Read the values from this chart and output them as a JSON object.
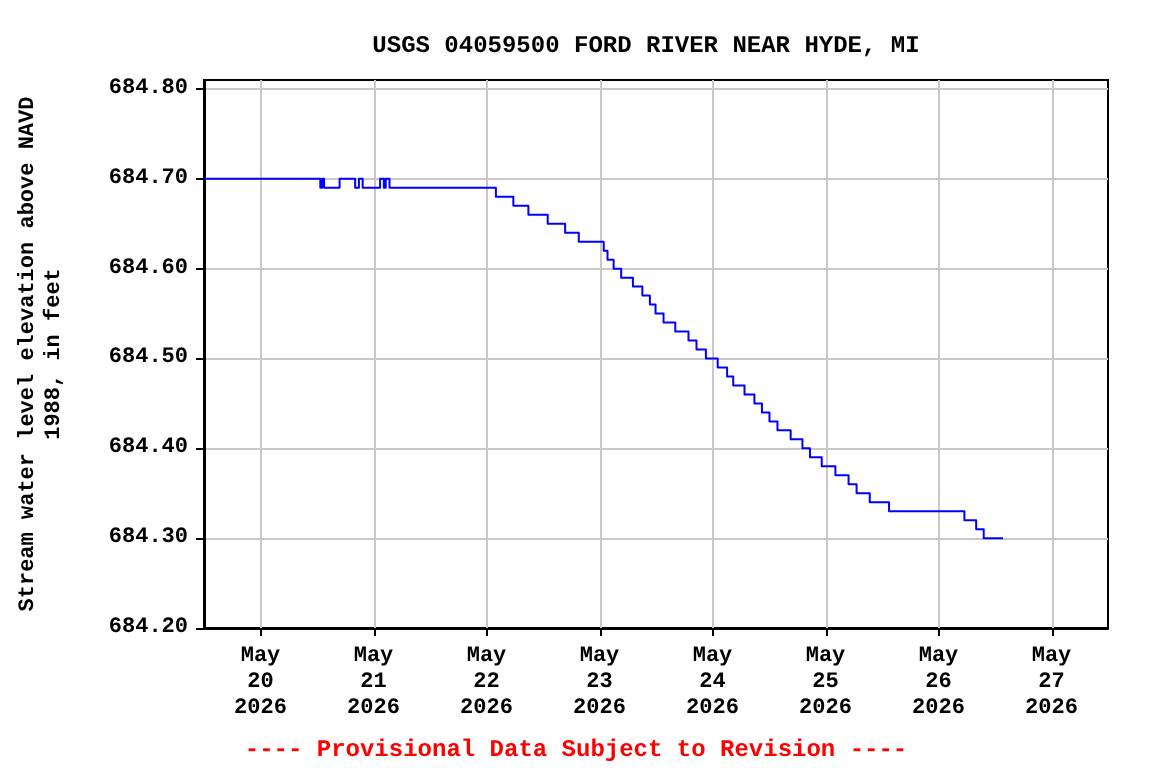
{
  "chart_data": {
    "type": "step",
    "title": "USGS 04059500 FORD RIVER NEAR HYDE, MI",
    "ylabel": "Stream water level elevation above NAVD 1988, in feet",
    "annotations": [
      "---- Provisional Data Subject to Revision ----"
    ],
    "x": [
      "2026-05-19T12:00",
      "2026-05-20T12:42",
      "2026-05-20T13:06",
      "2026-05-20T13:30",
      "2026-05-20T16:48",
      "2026-05-20T20:06",
      "2026-05-20T20:54",
      "2026-05-20T21:42",
      "2026-05-21T01:24",
      "2026-05-21T02:12",
      "2026-05-21T02:36",
      "2026-05-21T03:24",
      "2026-05-22T02:00",
      "2026-05-22T05:42",
      "2026-05-22T08:54",
      "2026-05-22T13:00",
      "2026-05-22T16:42",
      "2026-05-22T19:36",
      "2026-05-23T00:54",
      "2026-05-23T01:42",
      "2026-05-23T03:00",
      "2026-05-23T04:36",
      "2026-05-23T07:06",
      "2026-05-23T09:06",
      "2026-05-23T10:42",
      "2026-05-23T11:54",
      "2026-05-23T13:36",
      "2026-05-23T16:06",
      "2026-05-23T18:54",
      "2026-05-23T20:36",
      "2026-05-23T22:36",
      "2026-05-24T01:06",
      "2026-05-24T03:06",
      "2026-05-24T04:24",
      "2026-05-24T06:48",
      "2026-05-24T08:54",
      "2026-05-24T10:30",
      "2026-05-24T12:06",
      "2026-05-24T13:48",
      "2026-05-24T16:36",
      "2026-05-24T19:06",
      "2026-05-24T20:42",
      "2026-05-24T23:12",
      "2026-05-25T02:06",
      "2026-05-25T04:54",
      "2026-05-25T06:36",
      "2026-05-25T09:24",
      "2026-05-25T13:30",
      "2026-05-26T05:30",
      "2026-05-26T08:00",
      "2026-05-26T09:36",
      "2026-05-26T13:42"
    ],
    "series": [
      {
        "color": "#0000ff",
        "values": [
          684.7,
          684.69,
          684.7,
          684.69,
          684.7,
          684.69,
          684.7,
          684.69,
          684.7,
          684.69,
          684.7,
          684.69,
          684.68,
          684.67,
          684.66,
          684.65,
          684.64,
          684.63,
          684.62,
          684.61,
          684.6,
          684.59,
          684.58,
          684.57,
          684.56,
          684.55,
          684.54,
          684.53,
          684.52,
          684.51,
          684.5,
          684.49,
          684.48,
          684.47,
          684.46,
          684.45,
          684.44,
          684.43,
          684.42,
          684.41,
          684.4,
          684.39,
          684.38,
          684.37,
          684.36,
          684.35,
          684.34,
          684.33,
          684.32,
          684.31,
          684.3,
          684.3
        ]
      }
    ],
    "xlim": [
      "2026-05-19T12:00",
      "2026-05-27T12:00"
    ],
    "xticks": [
      {
        "value": "2026-05-20",
        "label": "May\n20\n2026"
      },
      {
        "value": "2026-05-21",
        "label": "May\n21\n2026"
      },
      {
        "value": "2026-05-22",
        "label": "May\n22\n2026"
      },
      {
        "value": "2026-05-23",
        "label": "May\n23\n2026"
      },
      {
        "value": "2026-05-24",
        "label": "May\n24\n2026"
      },
      {
        "value": "2026-05-25",
        "label": "May\n25\n2026"
      },
      {
        "value": "2026-05-26",
        "label": "May\n26\n2026"
      },
      {
        "value": "2026-05-27",
        "label": "May\n27\n2026"
      }
    ],
    "ylim": [
      684.2,
      684.81
    ],
    "yticks": [
      {
        "value": 684.2,
        "label": "684.20"
      },
      {
        "value": 684.3,
        "label": "684.30"
      },
      {
        "value": 684.4,
        "label": "684.40"
      },
      {
        "value": 684.5,
        "label": "684.50"
      },
      {
        "value": 684.6,
        "label": "684.60"
      },
      {
        "value": 684.7,
        "label": "684.70"
      },
      {
        "value": 684.8,
        "label": "684.80"
      }
    ],
    "grid": true,
    "marker": "none",
    "line_style": "solid"
  }
}
